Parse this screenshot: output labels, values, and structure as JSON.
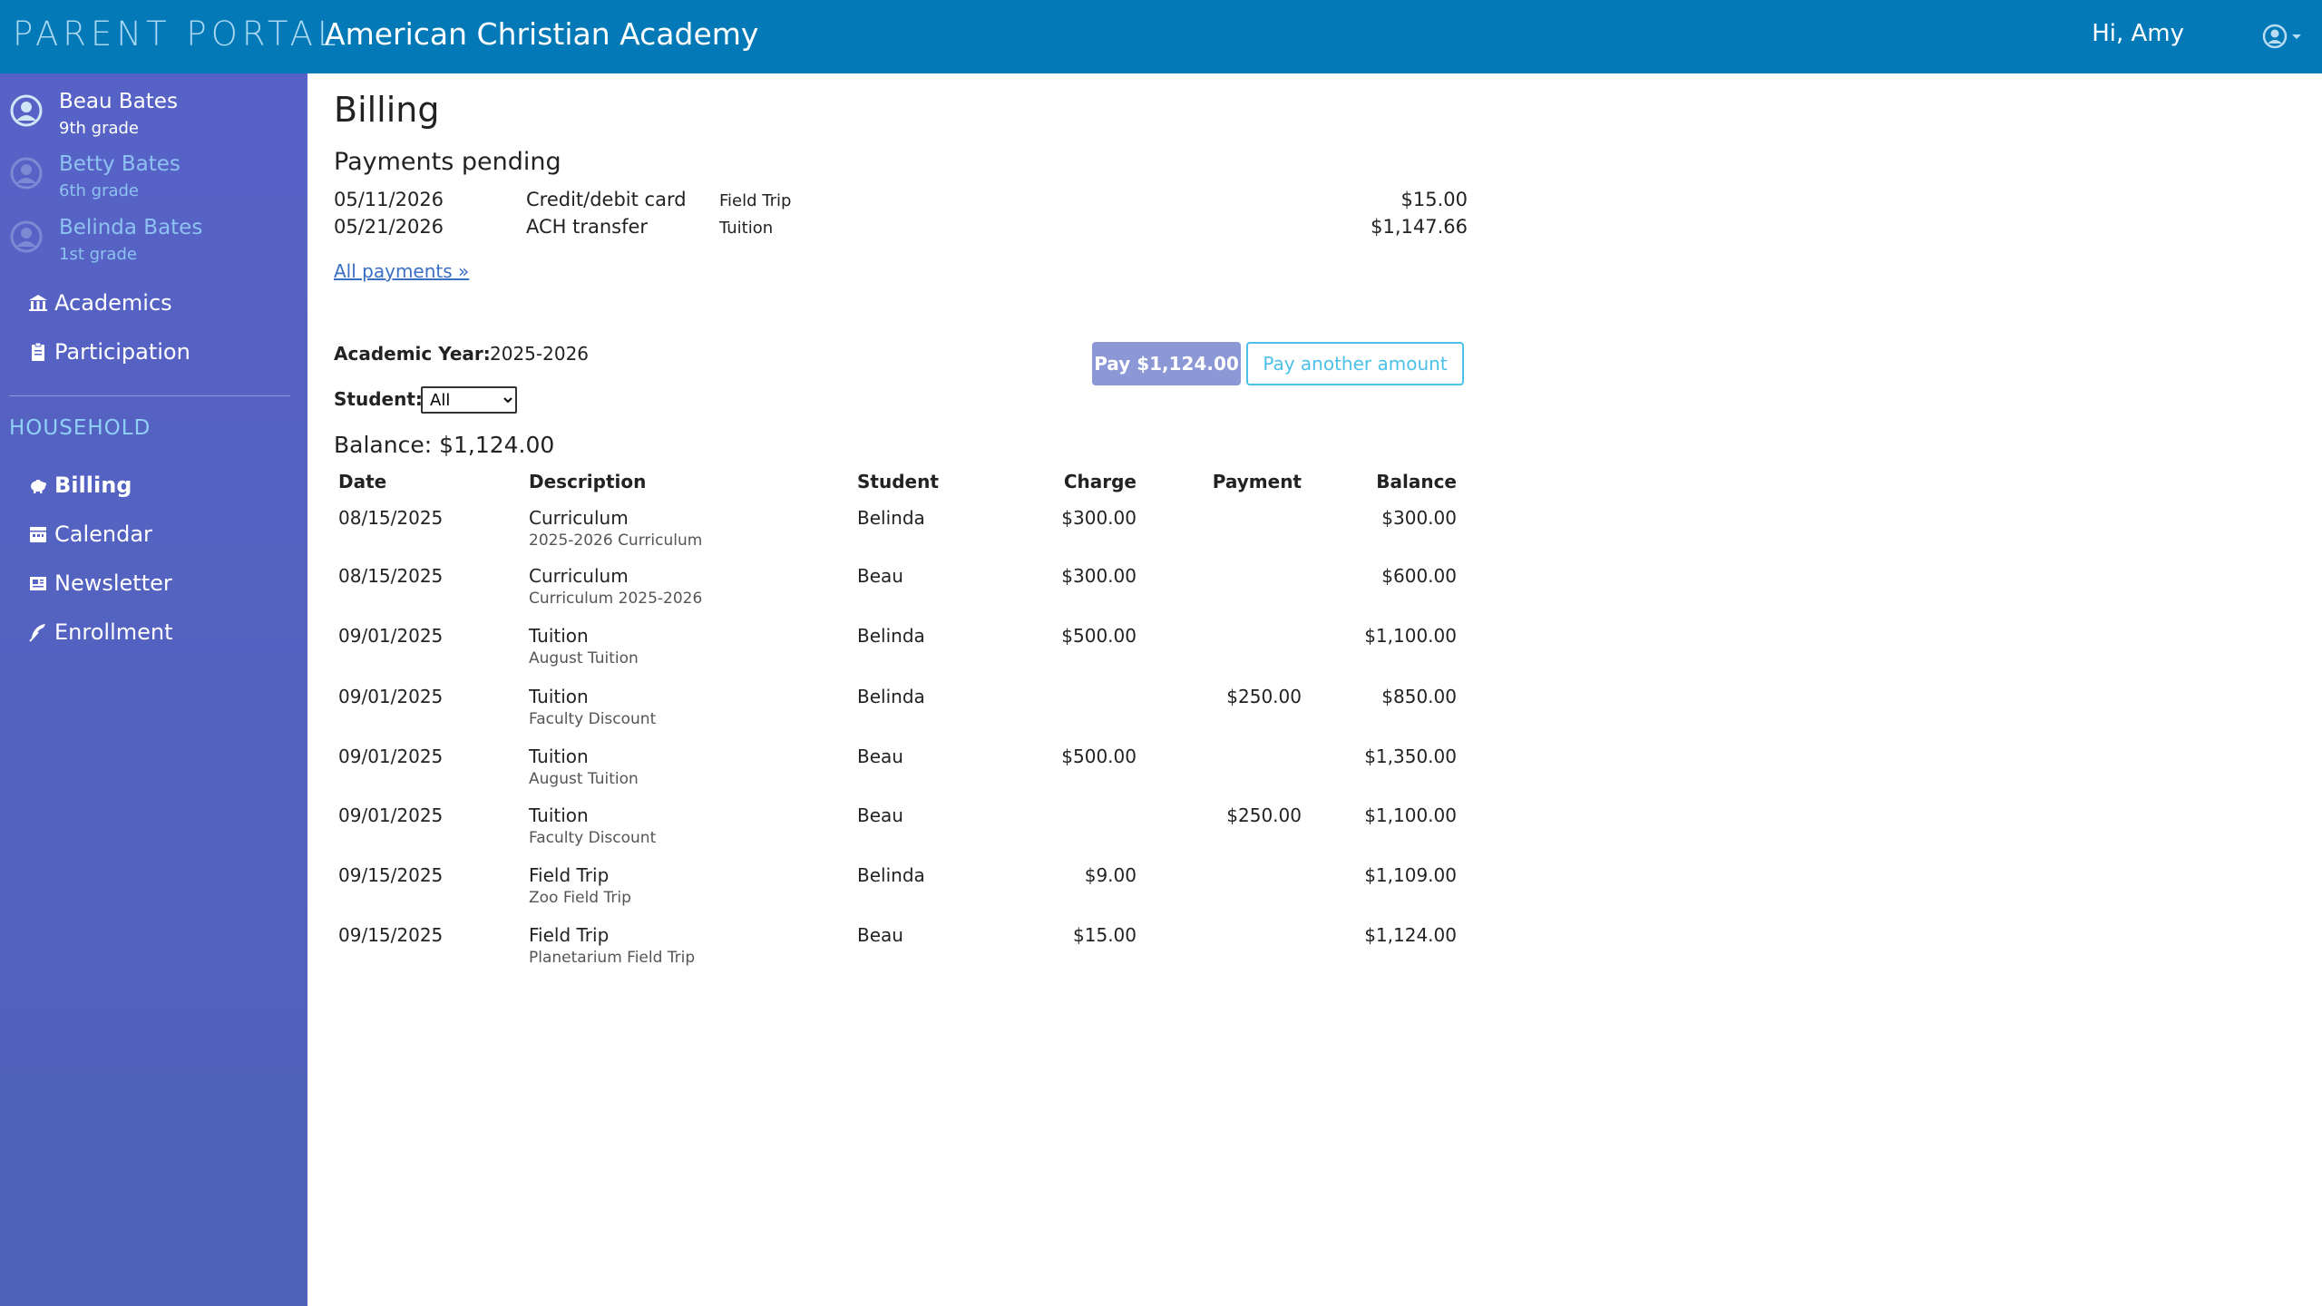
{
  "header": {
    "brand": "PARENT PORTAL",
    "school": "American Christian Academy",
    "greeting": "Hi, Amy"
  },
  "sidebar": {
    "students": [
      {
        "name": "Beau Bates",
        "grade": "9th grade",
        "active": true
      },
      {
        "name": "Betty Bates",
        "grade": "6th grade",
        "active": false
      },
      {
        "name": "Belinda Bates",
        "grade": "1st grade",
        "active": false
      }
    ],
    "student_nav": [
      {
        "label": "Academics",
        "icon": "building-icon"
      },
      {
        "label": "Participation",
        "icon": "clipboard-icon"
      }
    ],
    "household_label": "HOUSEHOLD",
    "household_nav": [
      {
        "label": "Billing",
        "icon": "piggy-bank-icon",
        "active": true
      },
      {
        "label": "Calendar",
        "icon": "calendar-icon"
      },
      {
        "label": "Newsletter",
        "icon": "newspaper-icon"
      },
      {
        "label": "Enrollment",
        "icon": "feather-icon"
      }
    ]
  },
  "main": {
    "title": "Billing",
    "pending_title": "Payments pending",
    "pending": [
      {
        "date": "05/11/2026",
        "method": "Credit/debit card",
        "category": "Field Trip",
        "amount": "$15.00"
      },
      {
        "date": "05/21/2026",
        "method": "ACH transfer",
        "category": "Tuition",
        "amount": "$1,147.66"
      }
    ],
    "all_payments_link": "All payments »",
    "academic_year_label": "Academic Year:",
    "academic_year_value": "2025-2026",
    "pay_button": "Pay $1,124.00",
    "pay_other_button": "Pay another amount",
    "student_label": "Student:",
    "student_select_value": "All",
    "balance_label": "Balance: $1,124.00",
    "table": {
      "headers": {
        "date": "Date",
        "description": "Description",
        "student": "Student",
        "charge": "Charge",
        "payment": "Payment",
        "balance": "Balance"
      },
      "rows": [
        {
          "date": "08/15/2025",
          "desc": "Curriculum",
          "sub": "2025-2026 Curriculum",
          "student": "Belinda",
          "charge": "$300.00",
          "payment": "",
          "balance": "$300.00"
        },
        {
          "date": "08/15/2025",
          "desc": "Curriculum",
          "sub": "Curriculum 2025-2026",
          "student": "Beau",
          "charge": "$300.00",
          "payment": "",
          "balance": "$600.00"
        },
        {
          "date": "09/01/2025",
          "desc": "Tuition",
          "sub": "August Tuition",
          "student": "Belinda",
          "charge": "$500.00",
          "payment": "",
          "balance": "$1,100.00"
        },
        {
          "date": "09/01/2025",
          "desc": "Tuition",
          "sub": "Faculty Discount",
          "student": "Belinda",
          "charge": "",
          "payment": "$250.00",
          "balance": "$850.00"
        },
        {
          "date": "09/01/2025",
          "desc": "Tuition",
          "sub": "August Tuition",
          "student": "Beau",
          "charge": "$500.00",
          "payment": "",
          "balance": "$1,350.00"
        },
        {
          "date": "09/01/2025",
          "desc": "Tuition",
          "sub": "Faculty Discount",
          "student": "Beau",
          "charge": "",
          "payment": "$250.00",
          "balance": "$1,100.00"
        },
        {
          "date": "09/15/2025",
          "desc": "Field Trip",
          "sub": "Zoo Field Trip",
          "student": "Belinda",
          "charge": "$9.00",
          "payment": "",
          "balance": "$1,109.00"
        },
        {
          "date": "09/15/2025",
          "desc": "Field Trip",
          "sub": "Planetarium Field Trip",
          "student": "Beau",
          "charge": "$15.00",
          "payment": "",
          "balance": "$1,124.00"
        }
      ]
    }
  }
}
